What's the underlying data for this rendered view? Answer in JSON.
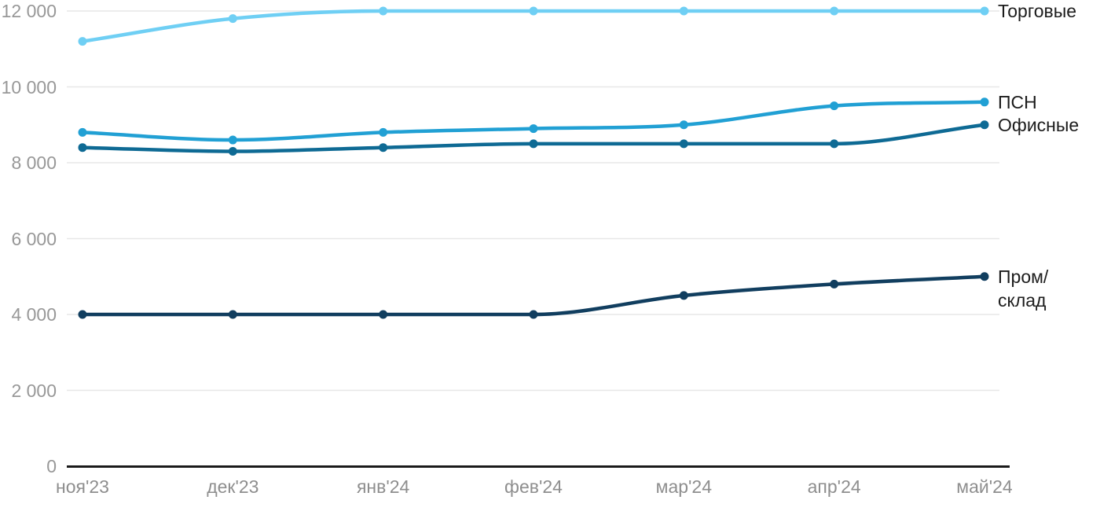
{
  "chart_data": {
    "type": "line",
    "title": "",
    "xlabel": "",
    "ylabel": "",
    "categories": [
      "ноя'23",
      "дек'23",
      "янв'24",
      "фев'24",
      "мар'24",
      "апр'24",
      "май'24"
    ],
    "series": [
      {
        "name": "Торговые",
        "label_lines": [
          "Торговые"
        ],
        "color": "#6fcff4",
        "values": [
          11200,
          11800,
          12000,
          12000,
          12000,
          12000,
          12000
        ]
      },
      {
        "name": "ПСН",
        "label_lines": [
          "ПСН"
        ],
        "color": "#21a0d4",
        "values": [
          8800,
          8600,
          8800,
          8900,
          9000,
          9500,
          9600
        ]
      },
      {
        "name": "Офисные",
        "label_lines": [
          "Офисные"
        ],
        "color": "#0e6a94",
        "values": [
          8400,
          8300,
          8400,
          8500,
          8500,
          8500,
          9000
        ]
      },
      {
        "name": "Пром/склад",
        "label_lines": [
          "Пром/",
          "склад"
        ],
        "color": "#113e5f",
        "values": [
          4000,
          4000,
          4000,
          4000,
          4500,
          4800,
          5000
        ]
      }
    ],
    "ylim": [
      0,
      12000
    ],
    "y_ticks": [
      0,
      2000,
      4000,
      6000,
      8000,
      10000,
      12000
    ],
    "y_tick_labels": [
      "0",
      "2 000",
      "4 000",
      "6 000",
      "8 000",
      "10 000",
      "12 000"
    ],
    "grid": true,
    "legend_position": "right-inline",
    "colors": {
      "gridline": "#e7e7e7",
      "axis_line": "#1a1a1a",
      "tick_text": "#949494",
      "label_text": "#1c1c1c",
      "background": "#ffffff"
    }
  }
}
